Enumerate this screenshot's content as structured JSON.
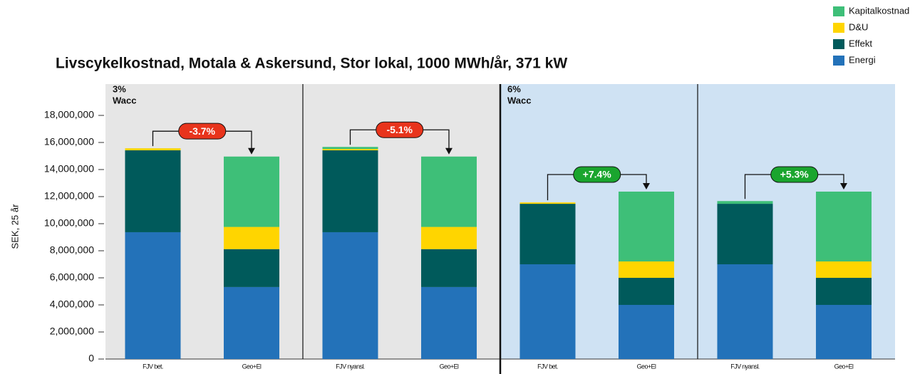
{
  "chart_data": {
    "type": "stacked-bar",
    "title": "Livscykelkostnad, Motala & Askersund, Stor lokal, 1000 MWh/år, 371 kW",
    "y_label": "SEK, 25 år",
    "categories": [
      "FJV bet.",
      "Geo+El",
      "FJV nyansl.",
      "Geo+El",
      "FJV bet.",
      "Geo+El",
      "FJV nyansl.",
      "Geo+El"
    ],
    "series": [
      {
        "name": "Energi",
        "color": "#2372b9",
        "values": [
          9370000,
          5320000,
          9370000,
          5320000,
          7000000,
          4000000,
          7000000,
          4000000
        ]
      },
      {
        "name": "Effekt",
        "color": "#005a5b",
        "values": [
          6050000,
          2800000,
          6050000,
          2800000,
          4470000,
          2000000,
          4470000,
          2000000
        ]
      },
      {
        "name": "D&U",
        "color": "#ffd500",
        "values": [
          150000,
          1640000,
          100000,
          1640000,
          100000,
          1210000,
          0,
          1210000
        ]
      },
      {
        "name": "Kapitalkostnad",
        "color": "#3ebf78",
        "values": [
          0,
          5200000,
          150000,
          5200000,
          0,
          5160000,
          200000,
          5160000
        ]
      }
    ],
    "panels": [
      {
        "rate": "3%",
        "label": "Wacc",
        "color": "#e6e6e6"
      },
      {
        "color": "#e6e6e6"
      },
      {
        "rate": "6%",
        "label": "Wacc",
        "color": "#cfe2f3"
      },
      {
        "color": "#cfe2f3"
      }
    ],
    "annotations": [
      {
        "text": "-3.7%",
        "color": "#e8341c"
      },
      {
        "text": "-5.1%",
        "color": "#e8341c"
      },
      {
        "text": "+7.4%",
        "color": "#1aa52e"
      },
      {
        "text": "+5.3%",
        "color": "#1aa52e"
      }
    ],
    "ylim": [
      0,
      20000000
    ],
    "yticks": [
      {
        "value": 0,
        "label": "0"
      },
      {
        "value": 2000000,
        "label": "2,000,000"
      },
      {
        "value": 4000000,
        "label": "4,000,000"
      },
      {
        "value": 6000000,
        "label": "6,000,000"
      },
      {
        "value": 8000000,
        "label": "8,000,000"
      },
      {
        "value": 10000000,
        "label": "10,000,000"
      },
      {
        "value": 12000000,
        "label": "12,000,000"
      },
      {
        "value": 14000000,
        "label": "14,000,000"
      },
      {
        "value": 16000000,
        "label": "16,000,000"
      },
      {
        "value": 18000000,
        "label": "18,000,000"
      }
    ],
    "legend": "top-right"
  }
}
